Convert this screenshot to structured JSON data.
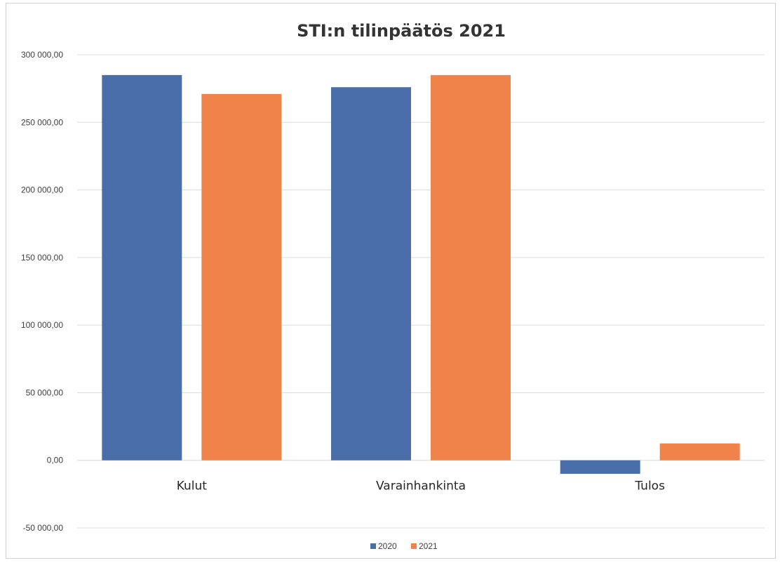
{
  "chart_data": {
    "type": "bar",
    "title": "STI:n tilinpäätös 2021",
    "categories": [
      "Kulut",
      "Varainhankinta",
      "Tulos"
    ],
    "series": [
      {
        "name": "2020",
        "values": [
          285000,
          276000,
          -10000
        ],
        "color": "#4a6ea9"
      },
      {
        "name": "2021",
        "values": [
          271000,
          285000,
          12500
        ],
        "color": "#f0834a"
      }
    ],
    "ylim": [
      -50000,
      300000
    ],
    "yticks": [
      -50000,
      0,
      50000,
      100000,
      150000,
      200000,
      250000,
      300000
    ],
    "ytick_labels": [
      "-50 000,00",
      "0,00",
      "50 000,00",
      "100 000,00",
      "150 000,00",
      "200 000,00",
      "250 000,00",
      "300 000,00"
    ],
    "xlabel": "",
    "ylabel": "",
    "grid": true,
    "legend_position": "bottom"
  }
}
